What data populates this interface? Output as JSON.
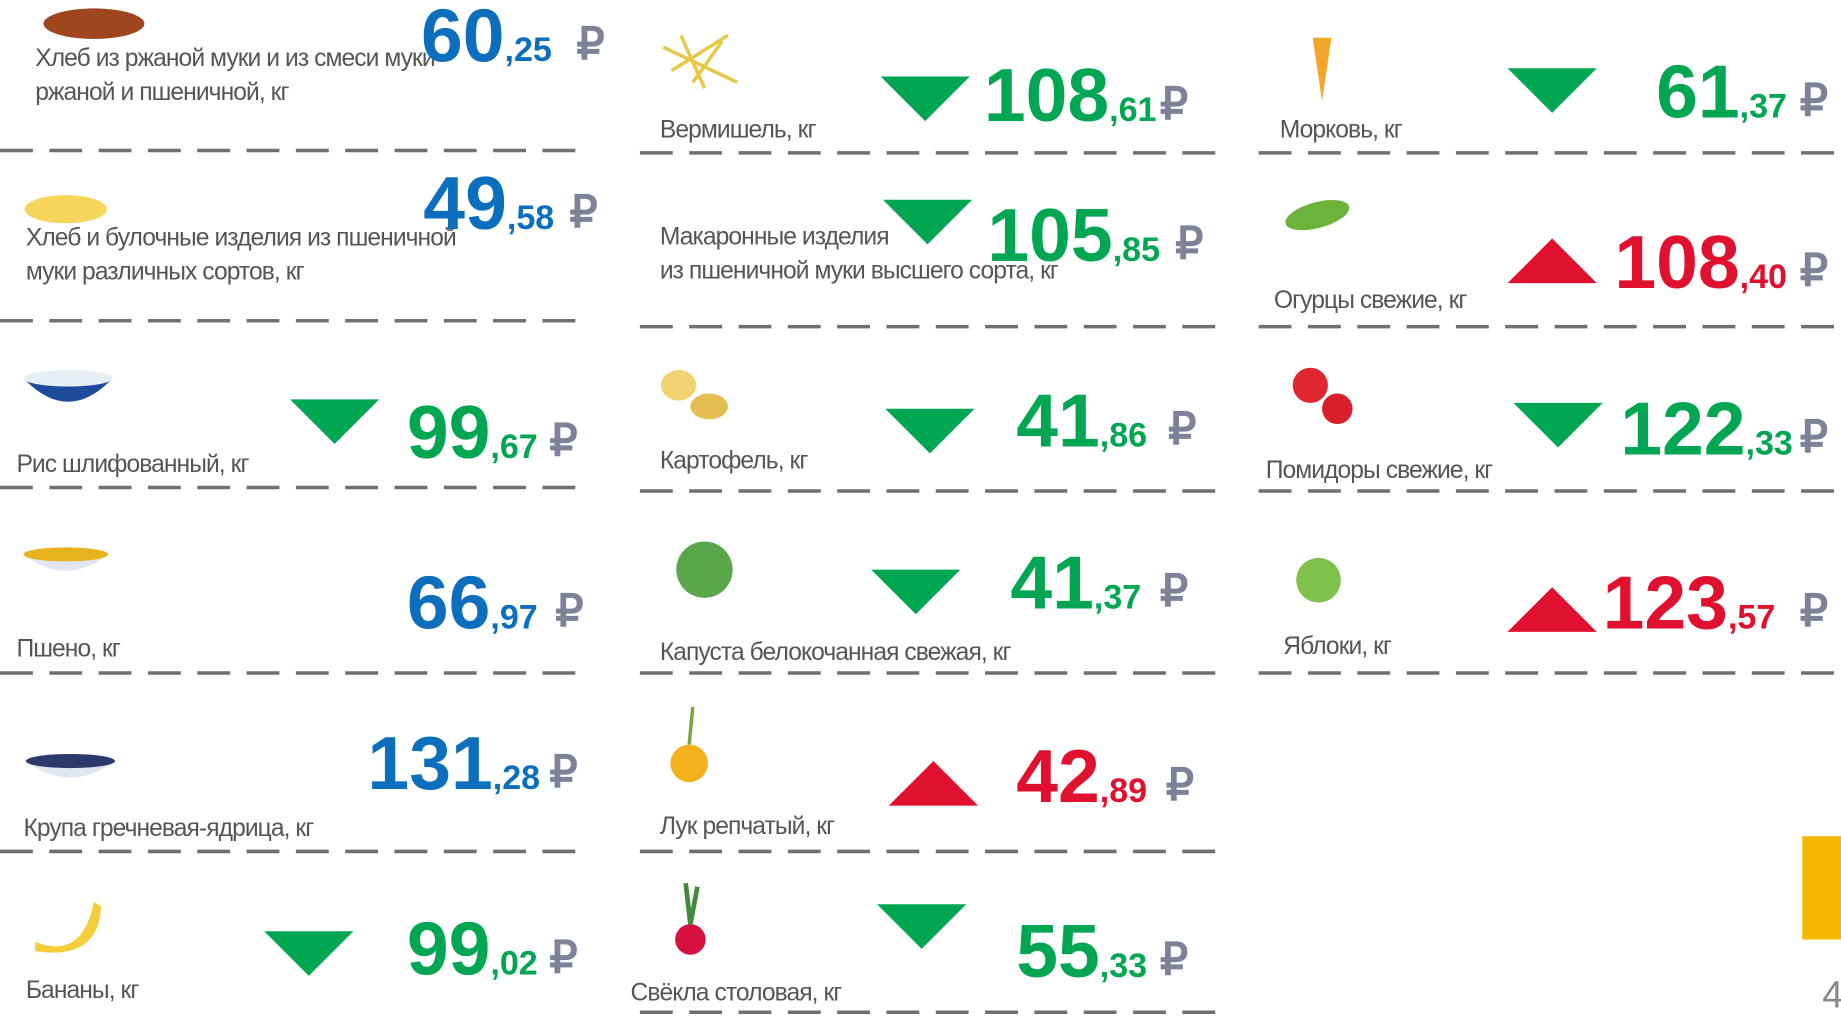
{
  "items": [
    {
      "name_lines": [
        "Хлеб из ржаной муки и из смеси  муки",
        "ржаной и пшеничной, кг"
      ],
      "price_int": "60",
      "price_dec": ",25",
      "color": "#0b6fbd"
    },
    {
      "name_lines": [
        "Хлеб и булочные изделия из пшеничной",
        "муки различных  сортов, кг"
      ],
      "price_int": "49",
      "price_dec": ",58",
      "color": "#0b6fbd"
    },
    {
      "name_lines": [
        "Рис шлифованный, кг"
      ],
      "price_int": "99",
      "price_dec": ",67",
      "trend": "down",
      "color": "#00a651"
    },
    {
      "name_lines": [
        "Пшено, кг"
      ],
      "price_int": "66",
      "price_dec": ",97",
      "color": "#0b6fbd"
    },
    {
      "name_lines": [
        "Крупа гречневая-ядрица, кг"
      ],
      "price_int": "131",
      "price_dec": ",28",
      "color": "#0b6fbd"
    },
    {
      "name_lines": [
        "Бананы, кг"
      ],
      "price_int": "99",
      "price_dec": ",02",
      "trend": "down",
      "color": "#00a651"
    },
    {
      "name_lines": [
        "Вермишель, кг"
      ],
      "price_int": "108",
      "price_dec": ",61",
      "trend": "down",
      "color": "#00a651"
    },
    {
      "name_lines": [
        "Макаронные изделия",
        "из пшеничной муки высшего сорта, кг"
      ],
      "price_int": "105",
      "price_dec": ",85",
      "trend": "down",
      "color": "#00a651"
    },
    {
      "name_lines": [
        "Картофель, кг"
      ],
      "price_int": "41",
      "price_dec": ",86",
      "trend": "down",
      "color": "#00a651"
    },
    {
      "name_lines": [
        "Капуста белокочанная свежая, кг"
      ],
      "price_int": "41",
      "price_dec": ",37",
      "trend": "down",
      "color": "#00a651"
    },
    {
      "name_lines": [
        "Лук репчатый, кг"
      ],
      "price_int": "42",
      "price_dec": ",89",
      "trend": "up",
      "color": "#e0102f"
    },
    {
      "name_lines": [
        "Свёкла столовая, кг"
      ],
      "price_int": "55",
      "price_dec": ",33",
      "trend": "down",
      "color": "#00a651"
    },
    {
      "name_lines": [
        "Морковь, кг"
      ],
      "price_int": "61",
      "price_dec": ",37",
      "trend": "down",
      "color": "#00a651"
    },
    {
      "name_lines": [
        "Огурцы свежие, кг"
      ],
      "price_int": "108",
      "price_dec": ",40",
      "trend": "up",
      "color": "#e0102f"
    },
    {
      "name_lines": [
        "Помидоры свежие, кг"
      ],
      "price_int": "122",
      "price_dec": ",33",
      "trend": "down",
      "color": "#00a651"
    },
    {
      "name_lines": [
        "Яблоки, кг"
      ],
      "price_int": "123",
      "price_dec": ",57",
      "trend": "up",
      "color": "#e0102f"
    }
  ],
  "currency": "₽",
  "page_number": "4"
}
